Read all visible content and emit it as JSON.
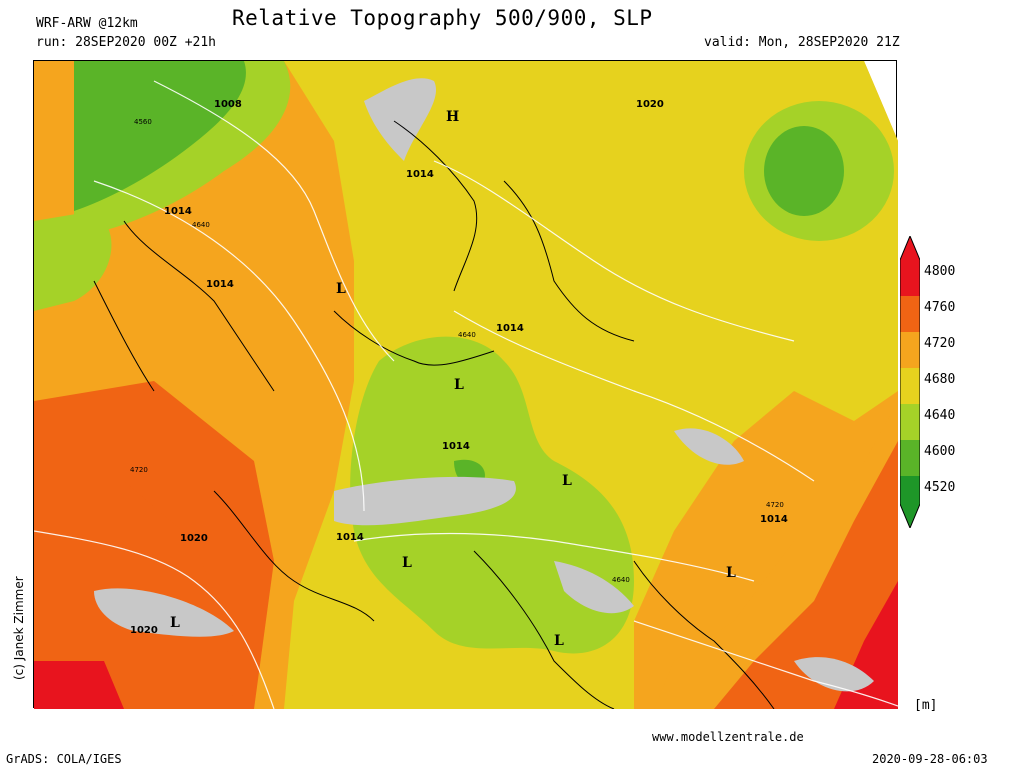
{
  "header": {
    "model": "WRF-ARW @12km",
    "title": "Relative Topography 500/900, SLP",
    "run": "run: 28SEP2020 00Z +21h",
    "valid": "valid: Mon, 28SEP2020 21Z"
  },
  "footer": {
    "software": "GrADS: COLA/IGES",
    "timestamp": "2020-09-28-06:03",
    "website": "www.modellzentrale.de",
    "copyright": "(c) Janek Zimmer"
  },
  "legend": {
    "unit": "[m]",
    "levels": [
      "4800",
      "4760",
      "4720",
      "4680",
      "4640",
      "4600",
      "4520"
    ],
    "colors": [
      "#e8141e",
      "#f06414",
      "#f5a51e",
      "#e6d21e",
      "#a5d228",
      "#5ab428",
      "#1e9628"
    ]
  },
  "map": {
    "pressure_labels": [
      "1008",
      "1014",
      "1014",
      "1020",
      "1014",
      "1014",
      "1014",
      "1020",
      "1014",
      "1020",
      "1014"
    ],
    "isohypse_labels": [
      "4560",
      "4640",
      "4640",
      "4720",
      "4720",
      "4640"
    ],
    "high_label": "H",
    "low_label": "L"
  }
}
